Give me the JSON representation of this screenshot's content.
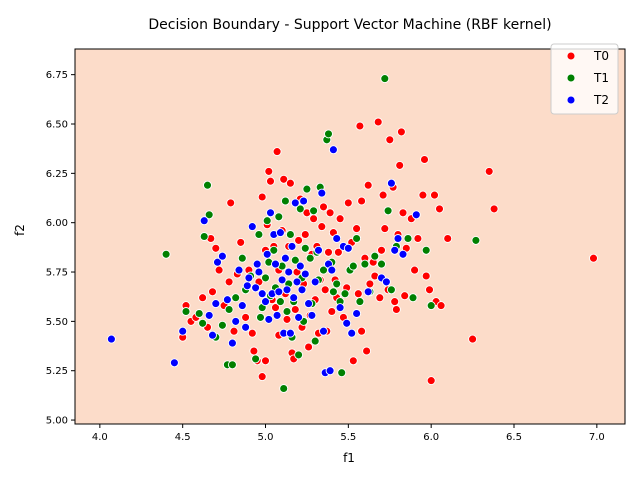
{
  "chart_data": {
    "type": "scatter",
    "title": "Decision Boundary - Support Vector Machine (RBF kernel)",
    "xlabel": "f1",
    "ylabel": "f2",
    "xlim": [
      3.85,
      7.17
    ],
    "ylim": [
      4.98,
      6.88
    ],
    "xticks": [
      "4.0",
      "4.5",
      "5.0",
      "5.5",
      "6.0",
      "6.5",
      "7.0"
    ],
    "yticks": [
      "5.00",
      "5.25",
      "5.50",
      "5.75",
      "6.00",
      "6.25",
      "6.50",
      "6.75"
    ],
    "background_region_color": "#fcdcc9",
    "legend_position": "upper right",
    "grid": false,
    "series": [
      {
        "name": "T0",
        "color": "#ff0000",
        "points": [
          [
            4.5,
            5.42
          ],
          [
            4.52,
            5.58
          ],
          [
            4.55,
            5.5
          ],
          [
            4.58,
            5.52
          ],
          [
            4.62,
            5.62
          ],
          [
            4.65,
            5.47
          ],
          [
            4.67,
            5.92
          ],
          [
            4.68,
            5.65
          ],
          [
            4.7,
            5.87
          ],
          [
            4.72,
            5.76
          ],
          [
            4.75,
            5.58
          ],
          [
            4.78,
            5.7
          ],
          [
            4.79,
            6.1
          ],
          [
            4.81,
            5.45
          ],
          [
            4.83,
            5.74
          ],
          [
            4.85,
            5.9
          ],
          [
            4.88,
            5.52
          ],
          [
            4.9,
            5.76
          ],
          [
            4.92,
            5.44
          ],
          [
            4.93,
            5.35
          ],
          [
            4.95,
            5.3
          ],
          [
            4.96,
            5.7
          ],
          [
            4.98,
            5.22
          ],
          [
            4.98,
            6.13
          ],
          [
            5.0,
            5.3
          ],
          [
            5.0,
            5.86
          ],
          [
            5.01,
            5.99
          ],
          [
            5.02,
            6.26
          ],
          [
            5.03,
            6.21
          ],
          [
            5.04,
            5.61
          ],
          [
            5.05,
            5.88
          ],
          [
            5.06,
            5.57
          ],
          [
            5.07,
            6.36
          ],
          [
            5.08,
            5.43
          ],
          [
            5.08,
            5.76
          ],
          [
            5.1,
            5.96
          ],
          [
            5.11,
            6.22
          ],
          [
            5.12,
            5.64
          ],
          [
            5.13,
            5.51
          ],
          [
            5.14,
            5.88
          ],
          [
            5.15,
            6.2
          ],
          [
            5.16,
            5.34
          ],
          [
            5.17,
            5.31
          ],
          [
            5.18,
            5.56
          ],
          [
            5.19,
            5.75
          ],
          [
            5.2,
            5.91
          ],
          [
            5.21,
            6.12
          ],
          [
            5.22,
            5.47
          ],
          [
            5.23,
            5.69
          ],
          [
            5.24,
            5.94
          ],
          [
            5.25,
            6.05
          ],
          [
            5.26,
            5.37
          ],
          [
            5.27,
            5.53
          ],
          [
            5.28,
            5.84
          ],
          [
            5.29,
            6.02
          ],
          [
            5.3,
            5.61
          ],
          [
            5.31,
            5.88
          ],
          [
            5.32,
            5.44
          ],
          [
            5.33,
            5.71
          ],
          [
            5.34,
            5.98
          ],
          [
            5.35,
            6.08
          ],
          [
            5.36,
            5.66
          ],
          [
            5.37,
            5.45
          ],
          [
            5.38,
            5.85
          ],
          [
            5.39,
            6.05
          ],
          [
            5.4,
            5.55
          ],
          [
            5.41,
            5.95
          ],
          [
            5.42,
            5.71
          ],
          [
            5.43,
            5.62
          ],
          [
            5.44,
            5.85
          ],
          [
            5.45,
            6.02
          ],
          [
            5.47,
            5.52
          ],
          [
            5.49,
            5.67
          ],
          [
            5.5,
            6.1
          ],
          [
            5.52,
            5.9
          ],
          [
            5.53,
            5.3
          ],
          [
            5.55,
            5.97
          ],
          [
            5.56,
            5.64
          ],
          [
            5.57,
            6.49
          ],
          [
            5.58,
            6.11
          ],
          [
            5.58,
            5.45
          ],
          [
            5.6,
            5.82
          ],
          [
            5.61,
            5.35
          ],
          [
            5.62,
            6.19
          ],
          [
            5.63,
            5.69
          ],
          [
            5.65,
            5.8
          ],
          [
            5.66,
            5.73
          ],
          [
            5.68,
            6.51
          ],
          [
            5.69,
            5.62
          ],
          [
            5.7,
            5.86
          ],
          [
            5.71,
            6.14
          ],
          [
            5.72,
            5.97
          ],
          [
            5.74,
            5.66
          ],
          [
            5.75,
            6.42
          ],
          [
            5.77,
            6.18
          ],
          [
            5.78,
            5.6
          ],
          [
            5.79,
            5.56
          ],
          [
            5.8,
            5.94
          ],
          [
            5.81,
            6.29
          ],
          [
            5.82,
            6.46
          ],
          [
            5.83,
            6.05
          ],
          [
            5.84,
            5.63
          ],
          [
            5.85,
            5.87
          ],
          [
            5.88,
            6.02
          ],
          [
            5.9,
            5.76
          ],
          [
            5.92,
            5.92
          ],
          [
            5.95,
            6.14
          ],
          [
            5.96,
            6.32
          ],
          [
            5.97,
            5.73
          ],
          [
            5.99,
            5.66
          ],
          [
            6.0,
            5.2
          ],
          [
            6.02,
            6.14
          ],
          [
            6.03,
            5.6
          ],
          [
            6.05,
            6.07
          ],
          [
            6.06,
            5.58
          ],
          [
            6.1,
            5.92
          ],
          [
            6.25,
            5.41
          ],
          [
            6.35,
            6.26
          ],
          [
            6.38,
            6.07
          ],
          [
            6.98,
            5.82
          ]
        ]
      },
      {
        "name": "T1",
        "color": "#008000",
        "points": [
          [
            4.4,
            5.84
          ],
          [
            4.52,
            5.55
          ],
          [
            4.6,
            5.54
          ],
          [
            4.62,
            5.49
          ],
          [
            4.63,
            5.93
          ],
          [
            4.65,
            6.19
          ],
          [
            4.66,
            6.04
          ],
          [
            4.7,
            5.42
          ],
          [
            4.74,
            5.48
          ],
          [
            4.77,
            5.28
          ],
          [
            4.78,
            5.56
          ],
          [
            4.8,
            5.28
          ],
          [
            4.82,
            5.62
          ],
          [
            4.86,
            5.82
          ],
          [
            4.88,
            5.66
          ],
          [
            4.91,
            5.73
          ],
          [
            4.94,
            5.31
          ],
          [
            4.96,
            5.94
          ],
          [
            4.97,
            5.52
          ],
          [
            4.98,
            5.57
          ],
          [
            5.0,
            5.72
          ],
          [
            5.01,
            6.01
          ],
          [
            5.02,
            5.8
          ],
          [
            5.03,
            5.63
          ],
          [
            5.05,
            5.86
          ],
          [
            5.06,
            5.67
          ],
          [
            5.08,
            6.03
          ],
          [
            5.09,
            5.6
          ],
          [
            5.1,
            5.78
          ],
          [
            5.11,
            5.16
          ],
          [
            5.12,
            6.11
          ],
          [
            5.13,
            5.55
          ],
          [
            5.14,
            5.69
          ],
          [
            5.15,
            5.94
          ],
          [
            5.16,
            5.42
          ],
          [
            5.17,
            5.6
          ],
          [
            5.18,
            5.81
          ],
          [
            5.2,
            5.33
          ],
          [
            5.21,
            6.07
          ],
          [
            5.22,
            5.72
          ],
          [
            5.23,
            5.5
          ],
          [
            5.24,
            5.87
          ],
          [
            5.25,
            6.17
          ],
          [
            5.27,
            5.82
          ],
          [
            5.28,
            5.59
          ],
          [
            5.29,
            6.06
          ],
          [
            5.3,
            5.4
          ],
          [
            5.31,
            5.85
          ],
          [
            5.32,
            5.71
          ],
          [
            5.33,
            6.18
          ],
          [
            5.35,
            5.76
          ],
          [
            5.37,
            6.42
          ],
          [
            5.38,
            6.45
          ],
          [
            5.4,
            5.8
          ],
          [
            5.41,
            5.65
          ],
          [
            5.43,
            5.69
          ],
          [
            5.45,
            5.6
          ],
          [
            5.46,
            5.24
          ],
          [
            5.48,
            5.64
          ],
          [
            5.5,
            5.87
          ],
          [
            5.51,
            5.76
          ],
          [
            5.53,
            5.78
          ],
          [
            5.55,
            5.92
          ],
          [
            5.57,
            5.6
          ],
          [
            5.6,
            5.79
          ],
          [
            5.63,
            5.65
          ],
          [
            5.66,
            5.83
          ],
          [
            5.7,
            5.79
          ],
          [
            5.72,
            6.73
          ],
          [
            5.74,
            6.06
          ],
          [
            5.76,
            5.66
          ],
          [
            5.79,
            5.88
          ],
          [
            5.86,
            5.92
          ],
          [
            5.89,
            5.62
          ],
          [
            5.97,
            5.86
          ],
          [
            6.0,
            5.58
          ],
          [
            6.27,
            5.91
          ]
        ]
      },
      {
        "name": "T2",
        "color": "#0000ff",
        "points": [
          [
            4.07,
            5.41
          ],
          [
            4.45,
            5.29
          ],
          [
            4.5,
            5.45
          ],
          [
            4.63,
            6.01
          ],
          [
            4.66,
            5.53
          ],
          [
            4.68,
            5.43
          ],
          [
            4.7,
            5.59
          ],
          [
            4.71,
            5.8
          ],
          [
            4.74,
            5.83
          ],
          [
            4.77,
            5.61
          ],
          [
            4.8,
            5.39
          ],
          [
            4.82,
            5.5
          ],
          [
            4.84,
            5.76
          ],
          [
            4.86,
            5.58
          ],
          [
            4.88,
            5.47
          ],
          [
            4.89,
            5.68
          ],
          [
            4.9,
            5.72
          ],
          [
            4.92,
            5.98
          ],
          [
            4.94,
            5.67
          ],
          [
            4.95,
            5.79
          ],
          [
            4.96,
            5.75
          ],
          [
            4.98,
            5.64
          ],
          [
            5.0,
            5.6
          ],
          [
            5.01,
            5.84
          ],
          [
            5.02,
            5.51
          ],
          [
            5.03,
            6.05
          ],
          [
            5.04,
            5.64
          ],
          [
            5.05,
            5.94
          ],
          [
            5.06,
            5.79
          ],
          [
            5.07,
            5.53
          ],
          [
            5.08,
            5.65
          ],
          [
            5.09,
            5.95
          ],
          [
            5.1,
            5.71
          ],
          [
            5.11,
            5.44
          ],
          [
            5.12,
            5.82
          ],
          [
            5.13,
            5.66
          ],
          [
            5.14,
            5.75
          ],
          [
            5.15,
            5.44
          ],
          [
            5.16,
            5.88
          ],
          [
            5.17,
            5.62
          ],
          [
            5.18,
            6.1
          ],
          [
            5.19,
            5.7
          ],
          [
            5.2,
            5.52
          ],
          [
            5.21,
            5.78
          ],
          [
            5.22,
            5.66
          ],
          [
            5.23,
            6.11
          ],
          [
            5.24,
            5.74
          ],
          [
            5.26,
            5.59
          ],
          [
            5.28,
            5.53
          ],
          [
            5.3,
            5.7
          ],
          [
            5.32,
            5.86
          ],
          [
            5.34,
            6.15
          ],
          [
            5.35,
            5.45
          ],
          [
            5.36,
            5.24
          ],
          [
            5.38,
            5.79
          ],
          [
            5.39,
            5.25
          ],
          [
            5.4,
            5.76
          ],
          [
            5.41,
            6.37
          ],
          [
            5.43,
            5.92
          ],
          [
            5.45,
            5.57
          ],
          [
            5.47,
            5.88
          ],
          [
            5.49,
            5.49
          ],
          [
            5.5,
            5.87
          ],
          [
            5.52,
            5.44
          ],
          [
            5.55,
            5.54
          ],
          [
            5.62,
            5.65
          ],
          [
            5.7,
            5.72
          ],
          [
            5.73,
            5.7
          ],
          [
            5.76,
            6.2
          ],
          [
            5.78,
            5.86
          ],
          [
            5.8,
            5.92
          ],
          [
            5.83,
            5.84
          ],
          [
            5.91,
            6.04
          ]
        ]
      }
    ]
  }
}
